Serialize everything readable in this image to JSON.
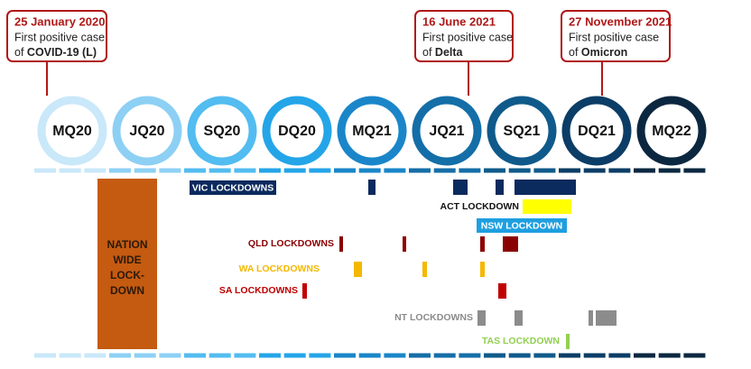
{
  "callouts": [
    {
      "date": "25 January 2020",
      "line1": "First positive case",
      "line2_prefix": "of",
      "line2_bold": "COVID-19 (L)"
    },
    {
      "date": "16 June 2021",
      "line1": "First positive case",
      "line2_prefix": "of",
      "line2_bold": "Delta"
    },
    {
      "date": "27 November 2021",
      "line1": "First positive case",
      "line2_prefix": "of",
      "line2_bold": "Omicron"
    }
  ],
  "quarters": [
    "MQ20",
    "JQ20",
    "SQ20",
    "DQ20",
    "MQ21",
    "JQ21",
    "SQ21",
    "DQ21",
    "MQ22"
  ],
  "nationwide": [
    "NATION",
    "WIDE",
    "LOCK-",
    "DOWN"
  ],
  "lockdowns": {
    "vic": "VIC LOCKDOWNS",
    "act": "ACT LOCKDOWN",
    "nsw": "NSW LOCKDOWN",
    "qld": "QLD LOCKDOWNS",
    "wa": "WA LOCKDOWNS",
    "sa": "SA LOCKDOWNS",
    "nt": "NT LOCKDOWNS",
    "tas": "TAS LOCKDOWN"
  }
}
